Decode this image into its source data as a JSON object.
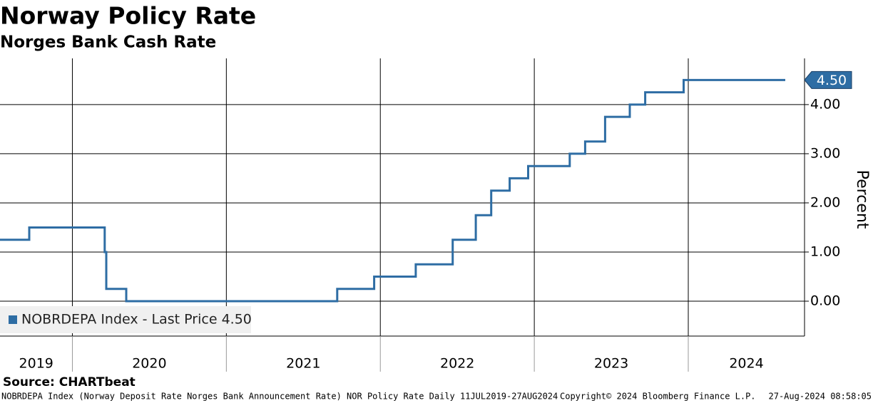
{
  "chart_data": {
    "type": "line",
    "title": "Norway Policy Rate",
    "subtitle": "Norges Bank Cash Rate",
    "y_axis_label": "Percent",
    "xlim": [
      2019.53,
      2024.755
    ],
    "xticks": [
      2020,
      2021,
      2022,
      2023,
      2024
    ],
    "year_labels": [
      "2019",
      "2020",
      "2021",
      "2022",
      "2023",
      "2024"
    ],
    "ylim": [
      -0.71,
      4.94
    ],
    "yticks": [
      {
        "value": 0,
        "label": "0.00"
      },
      {
        "value": 1,
        "label": "1.00"
      },
      {
        "value": 2,
        "label": "2.00"
      },
      {
        "value": 3,
        "label": "3.00"
      },
      {
        "value": 4,
        "label": "4.00"
      }
    ],
    "grid": true,
    "legend_position": "lower-left",
    "series": [
      {
        "name": "NOBRDEPA Index - Last Price 4.50",
        "color": "#2e6da4",
        "x": [
          2019.53,
          2019.72,
          2019.72,
          2020.21,
          2020.21,
          2020.22,
          2020.22,
          2020.35,
          2020.35,
          2021.72,
          2021.72,
          2021.96,
          2021.96,
          2022.23,
          2022.23,
          2022.47,
          2022.47,
          2022.62,
          2022.62,
          2022.72,
          2022.72,
          2022.84,
          2022.84,
          2022.96,
          2022.96,
          2023.23,
          2023.23,
          2023.33,
          2023.33,
          2023.46,
          2023.46,
          2023.62,
          2023.62,
          2023.72,
          2023.72,
          2023.97,
          2023.97,
          2024.63
        ],
        "values": [
          1.25,
          1.25,
          1.5,
          1.5,
          1.0,
          1.0,
          0.25,
          0.25,
          0.0,
          0.0,
          0.25,
          0.25,
          0.5,
          0.5,
          0.75,
          0.75,
          1.25,
          1.25,
          1.75,
          1.75,
          2.25,
          2.25,
          2.5,
          2.5,
          2.75,
          2.75,
          3.0,
          3.0,
          3.25,
          3.25,
          3.75,
          3.75,
          4.0,
          4.0,
          4.25,
          4.25,
          4.5,
          4.5
        ]
      }
    ],
    "last_value": {
      "value": 4.5,
      "label": "4.50"
    },
    "source": "Source: CHARTbeat",
    "footer_description": "NOBRDEPA Index (Norway Deposit Rate Norges Bank Announcement Rate) NOR Policy Rate  Daily 11JUL2019-27AUG2024",
    "copyright": "Copyright© 2024 Bloomberg Finance L.P.",
    "timestamp": "27-Aug-2024 08:58:05"
  }
}
